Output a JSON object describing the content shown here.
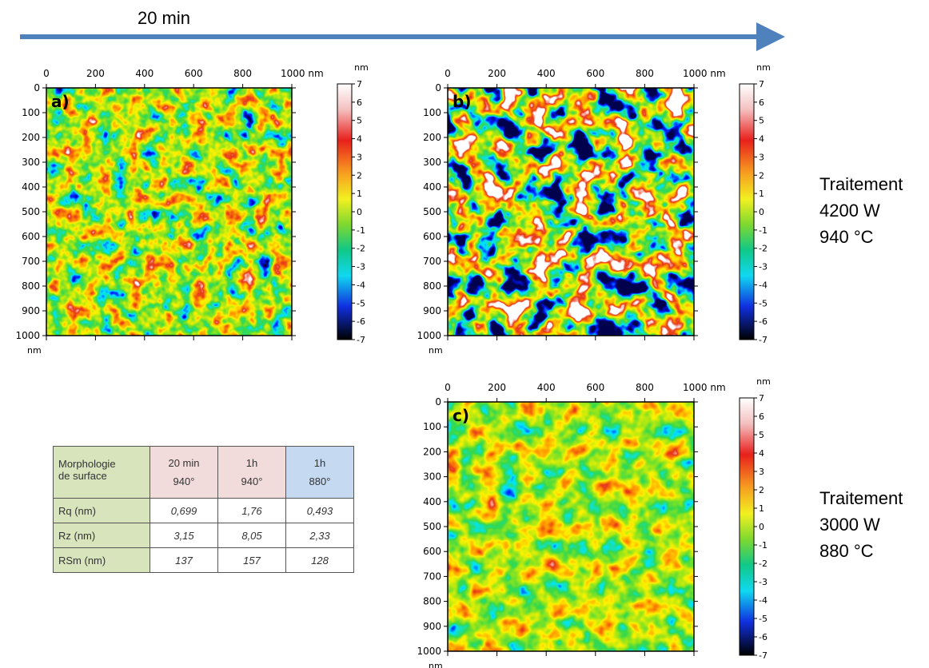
{
  "header": {
    "title": "20 min"
  },
  "panels": [
    {
      "label": "a)",
      "x_ticks": [
        "0",
        "200",
        "400",
        "600",
        "800",
        "1000 nm"
      ],
      "y_ticks": [
        "0",
        "100",
        "200",
        "300",
        "400",
        "500",
        "600",
        "700",
        "800",
        "900",
        "1000"
      ],
      "y_unit": "nm",
      "colorbar": {
        "unit": "nm",
        "ticks": [
          "7",
          "6",
          "5",
          "4",
          "3",
          "2",
          "1",
          "0",
          "-1",
          "-2",
          "-3",
          "-4",
          "-5",
          "-6",
          "-7"
        ]
      }
    },
    {
      "label": "b)",
      "x_ticks": [
        "0",
        "200",
        "400",
        "600",
        "800",
        "1000 nm"
      ],
      "y_ticks": [
        "0",
        "100",
        "200",
        "300",
        "400",
        "500",
        "600",
        "700",
        "800",
        "900",
        "1000"
      ],
      "y_unit": "nm",
      "colorbar": {
        "unit": "nm",
        "ticks": [
          "7",
          "6",
          "5",
          "4",
          "3",
          "2",
          "1",
          "0",
          "-1",
          "-2",
          "-3",
          "-4",
          "-5",
          "-6",
          "-7"
        ]
      }
    },
    {
      "label": "c)",
      "x_ticks": [
        "0",
        "200",
        "400",
        "600",
        "800",
        "1000 nm"
      ],
      "y_ticks": [
        "0",
        "100",
        "200",
        "300",
        "400",
        "500",
        "600",
        "700",
        "800",
        "900",
        "1000"
      ],
      "y_unit": "nm",
      "colorbar": {
        "unit": "nm",
        "ticks": [
          "7",
          "6",
          "5",
          "4",
          "3",
          "2",
          "1",
          "0",
          "-1",
          "-2",
          "-3",
          "-4",
          "-5",
          "-6",
          "-7"
        ]
      }
    }
  ],
  "side_labels": [
    [
      "Traitement",
      "4200 W",
      "940 °C"
    ],
    [
      "Traitement",
      "3000 W",
      "880 °C"
    ]
  ],
  "table": {
    "header": [
      [
        "Morphologie",
        "de surface"
      ],
      [
        "20 min",
        "940°"
      ],
      [
        "1h",
        "940°"
      ],
      [
        "1h",
        "880°"
      ]
    ],
    "rows": [
      [
        "Rq (nm)",
        "0,699",
        "1,76",
        "0,493"
      ],
      [
        "Rz (nm)",
        "3,15",
        "8,05",
        "2,33"
      ],
      [
        "RSm (nm)",
        "137",
        "157",
        "128"
      ]
    ]
  }
}
